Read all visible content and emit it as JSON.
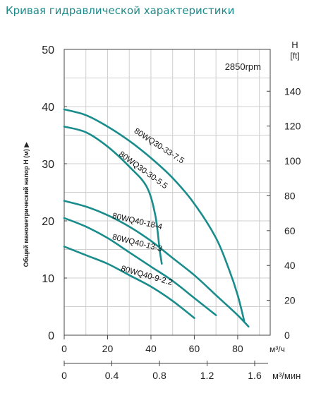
{
  "page": {
    "title": "Кривая гидравлической характеристики"
  },
  "chart_data": {
    "type": "line",
    "rpm_label": "2850rpm",
    "ylabel": "Общий манометрический напор H (м) ▶",
    "yright_label_top": "H",
    "yright_label_unit": "[ft]",
    "x_unit_primary": "м³/ч",
    "x_unit_secondary": "м³/мин",
    "xlim": [
      0,
      95
    ],
    "ylim": [
      0,
      50
    ],
    "yright_lim": [
      0,
      164
    ],
    "x_ticks": [
      "0",
      "20",
      "40",
      "60",
      "80"
    ],
    "x_tick_values": [
      0,
      20,
      40,
      60,
      80
    ],
    "x2_ticks": [
      "0",
      "0.4",
      "0.8",
      "1.2",
      "1.6"
    ],
    "x2_tick_values": [
      0,
      0.4,
      0.8,
      1.2,
      1.6
    ],
    "y_ticks": [
      "0",
      "10",
      "20",
      "30",
      "40",
      "50"
    ],
    "y_tick_values": [
      0,
      10,
      20,
      30,
      40,
      50
    ],
    "yright_ticks": [
      "0",
      "20",
      "40",
      "60",
      "80",
      "100",
      "120",
      "140"
    ],
    "yright_tick_values": [
      0,
      20,
      40,
      60,
      80,
      100,
      120,
      140
    ],
    "grid": true,
    "line_color": "#1a8c8c",
    "series": [
      {
        "name": "80WQ30-33-7.5",
        "x": [
          0,
          10,
          20,
          30,
          40,
          50,
          60,
          70,
          76,
          80,
          83
        ],
        "y": [
          39.5,
          38.5,
          36.5,
          34,
          31,
          27.5,
          23,
          17,
          11.5,
          7,
          2.5
        ],
        "label_x": 32,
        "label_y": 35.5,
        "label_angle": 33
      },
      {
        "name": "80WQ30-30-5.5",
        "x": [
          0,
          10,
          20,
          30,
          38,
          42,
          44,
          45
        ],
        "y": [
          36.5,
          35.5,
          33,
          29.5,
          26,
          21,
          15,
          12.5
        ],
        "label_x": 25,
        "label_y": 31.5,
        "label_angle": 36
      },
      {
        "name": "80WQ40-18-4",
        "x": [
          0,
          10,
          20,
          30,
          40,
          50,
          60,
          70,
          80,
          85
        ],
        "y": [
          23.5,
          22.5,
          21,
          19,
          16.5,
          13.5,
          10.5,
          7,
          3.5,
          1.5
        ],
        "label_x": 22,
        "label_y": 20.5,
        "label_angle": 13
      },
      {
        "name": "80WQ40-13-3",
        "x": [
          0,
          10,
          20,
          30,
          40,
          50,
          60,
          70
        ],
        "y": [
          20.5,
          19,
          17,
          14.5,
          12,
          9.5,
          6.5,
          3.5
        ],
        "label_x": 22,
        "label_y": 16.8,
        "label_angle": 14
      },
      {
        "name": "80WQ40-9-2.2",
        "x": [
          0,
          10,
          20,
          30,
          40,
          50,
          60
        ],
        "y": [
          15.5,
          14,
          12.5,
          10.5,
          8.5,
          6,
          3
        ],
        "label_x": 26,
        "label_y": 11.3,
        "label_angle": 16
      }
    ]
  }
}
